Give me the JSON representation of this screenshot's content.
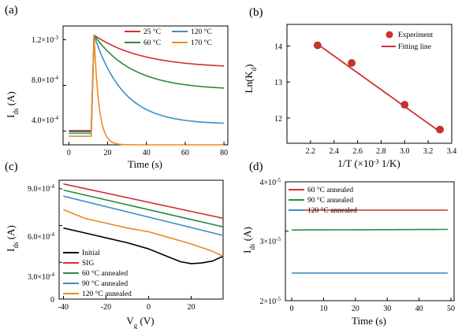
{
  "chart_data": [
    {
      "panel": "(a)",
      "type": "line",
      "xlabel": "Time (s)",
      "ylabel_main": "I",
      "ylabel_sub": "ds",
      "ylabel_unit": " (A)",
      "xlim": [
        -3,
        82
      ],
      "ylim": [
        0.00028,
        0.00132
      ],
      "xticks": [
        0,
        20,
        40,
        60,
        80
      ],
      "xtick_labels": [
        "0",
        "20",
        "40",
        "60",
        "80"
      ],
      "yticks": [
        0.0004,
        0.0008,
        0.0012
      ],
      "ytick_labels": [
        {
          "mant": "4.0×10",
          "exp": "-4"
        },
        {
          "mant": "8.0×10",
          "exp": "-4"
        },
        {
          "mant": "1.2×10",
          "exp": "-3"
        }
      ],
      "legend_position": "top-right",
      "series": [
        {
          "name": "25 °C",
          "color": "#d0312d",
          "i0": 0.000405,
          "ipk": 0.00124,
          "t0": 11.5,
          "tp": 13,
          "iss": 0.00095,
          "tau": 25
        },
        {
          "name": "60 °C",
          "color": "#2a8a3e",
          "i0": 0.000395,
          "ipk": 0.00124,
          "t0": 11.5,
          "tp": 13,
          "iss": 0.00076,
          "tau": 20
        },
        {
          "name": "120 °C",
          "color": "#3b8fc6",
          "i0": 0.00038,
          "ipk": 0.00124,
          "t0": 11.5,
          "tp": 13,
          "iss": 0.00046,
          "tau": 15
        },
        {
          "name": "170 °C",
          "color": "#ef8a22",
          "i0": 0.000355,
          "ipk": 0.00124,
          "t0": 11.5,
          "tp": 13,
          "iss": 0.00028,
          "tau": 2.5
        }
      ]
    },
    {
      "panel": "(b)",
      "type": "scatter",
      "xlabel": "1/T (×10",
      "xlabel_exp": "-3",
      "xlabel_tail": " 1/K)",
      "ylabel_main": "Ln(K",
      "ylabel_sub": "d",
      "ylabel_tail": ")",
      "xlim": [
        2.0,
        3.4
      ],
      "ylim": [
        11.3,
        14.6
      ],
      "xticks": [
        2.2,
        2.4,
        2.6,
        2.8,
        3.0,
        3.2,
        3.4
      ],
      "xtick_labels": [
        "2.2",
        "2.4",
        "2.6",
        "2.8",
        "3.0",
        "3.2",
        "3.4"
      ],
      "yticks": [
        12,
        13,
        14
      ],
      "ytick_labels": [
        "12",
        "13",
        "14"
      ],
      "legend_position": "top-right",
      "series": [
        {
          "name": "Experiment",
          "color": "#d0312d",
          "x": [
            2.26,
            2.55,
            3.0,
            3.3
          ],
          "y": [
            14.02,
            13.53,
            12.37,
            11.68
          ]
        },
        {
          "name": "Fitting line",
          "color": "#d0312d",
          "x": [
            2.26,
            3.3
          ],
          "y": [
            14.05,
            11.62
          ]
        }
      ]
    },
    {
      "panel": "(c)",
      "type": "line",
      "xlabel_main": "V",
      "xlabel_sub": "g",
      "xlabel_unit": " (V)",
      "ylabel_main": "I",
      "ylabel_sub": "ds",
      "ylabel_unit": " (A)",
      "xlim": [
        -42,
        35
      ],
      "ylim": [
        0,
        0.00097
      ],
      "xticks": [
        -40,
        -20,
        0,
        20
      ],
      "xtick_labels": [
        "-40",
        "-20",
        "0",
        "20"
      ],
      "yticks": [
        0,
        0.0003,
        0.0006,
        0.0009
      ],
      "ytick_labels": [
        {
          "mant": "0",
          "exp": ""
        },
        {
          "mant": "3.0×10",
          "exp": "-4"
        },
        {
          "mant": "6.0×10",
          "exp": "-4"
        },
        {
          "mant": "9.0×10",
          "exp": "-4"
        }
      ],
      "legend_position": "bottom-left",
      "series": [
        {
          "name": "Initial",
          "color": "#000000",
          "x": [
            -40,
            -30,
            -20,
            -10,
            0,
            10,
            15,
            20,
            25,
            30,
            35
          ],
          "y": [
            0.00058,
            0.00054,
            0.0005,
            0.00046,
            0.00041,
            0.00034,
            0.000305,
            0.00029,
            0.000295,
            0.00031,
            0.00035
          ]
        },
        {
          "name": "SIG",
          "color": "#d0312d",
          "x": [
            -40,
            35
          ],
          "y": [
            0.00094,
            0.00066
          ]
        },
        {
          "name": "60 °C annealed",
          "color": "#2a8a3e",
          "x": [
            -40,
            35
          ],
          "y": [
            0.00089,
            0.00059
          ]
        },
        {
          "name": "90 °C annealed",
          "color": "#3b8fc6",
          "x": [
            -40,
            35
          ],
          "y": [
            0.00084,
            0.00052
          ]
        },
        {
          "name": "120 °C annealed",
          "color": "#ef8a22",
          "x": [
            -40,
            -30,
            -20,
            -10,
            0,
            10,
            20,
            30,
            35
          ],
          "y": [
            0.00073,
            0.00066,
            0.00062,
            0.00058,
            0.00055,
            0.0005,
            0.00045,
            0.00039,
            0.00035
          ]
        }
      ]
    },
    {
      "panel": "(d)",
      "type": "line",
      "xlabel": "Time (s)",
      "ylabel_main": "I",
      "ylabel_sub": "ds",
      "ylabel_unit": " (A)",
      "xlim": [
        -2,
        51
      ],
      "ylim": [
        2e-05,
        4e-05
      ],
      "xticks": [
        0,
        10,
        20,
        30,
        40,
        50
      ],
      "xtick_labels": [
        "0",
        "10",
        "20",
        "30",
        "40",
        "50"
      ],
      "yticks": [
        2e-05,
        3e-05,
        4e-05
      ],
      "ytick_labels": [
        {
          "mant": "2×10",
          "exp": "-5"
        },
        {
          "mant": "3×10",
          "exp": "-5"
        },
        {
          "mant": "4×10",
          "exp": "-5"
        }
      ],
      "legend_position": "top-left",
      "series": [
        {
          "name": "60 °C annealed",
          "color": "#d0312d",
          "x": [
            0,
            49
          ],
          "y": [
            3.39e-05,
            3.39e-05
          ]
        },
        {
          "name": "90 °C annealed",
          "color": "#2a8a3e",
          "x": [
            0,
            49
          ],
          "y": [
            3.02e-05,
            3.03e-05
          ]
        },
        {
          "name": "120 °C annealed",
          "color": "#3b8fc6",
          "x": [
            0,
            49
          ],
          "y": [
            2.35e-05,
            2.35e-05
          ]
        }
      ]
    }
  ]
}
